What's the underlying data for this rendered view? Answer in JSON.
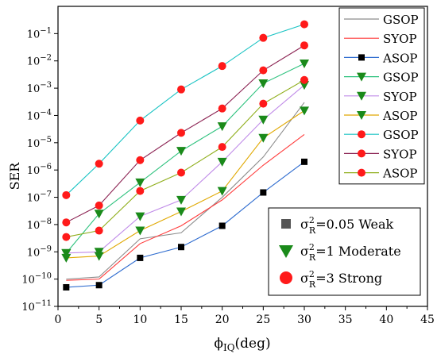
{
  "chart_data": {
    "type": "line",
    "title": "",
    "xlabel": "ϕ",
    "xlabel_sub": "IQ",
    "xlabel_unit": "(deg)",
    "ylabel": "SER",
    "xlim": [
      0,
      45
    ],
    "x_ticks": [
      0,
      5,
      10,
      15,
      20,
      25,
      30,
      35,
      40,
      45
    ],
    "yscale": "log",
    "ylim_exponent": [
      -11,
      0
    ],
    "y_tick_exponents": [
      -11,
      -10,
      -9,
      -8,
      -7,
      -6,
      -5,
      -4,
      -3,
      -2,
      -1
    ],
    "x": [
      1,
      5,
      10,
      15,
      20,
      25,
      30
    ],
    "legend_placement": "top-right",
    "series": [
      {
        "name": "GSOP",
        "group": "σ²=0.05 Weak",
        "color": "#8c8c8c",
        "marker": "none",
        "values": [
          1e-10,
          1.2e-10,
          3e-09,
          5e-09,
          1e-07,
          3e-06,
          0.0003
        ]
      },
      {
        "name": "SYOP",
        "group": "σ²=0.05 Weak",
        "color": "#ff3b3b",
        "marker": "none",
        "values": [
          9e-11,
          1e-10,
          2e-09,
          9e-09,
          8e-08,
          1.5e-06,
          2e-05
        ]
      },
      {
        "name": "ASOP",
        "group": "σ²=0.05 Weak",
        "color": "#2d6bcf",
        "marker": "square",
        "values": [
          5e-11,
          6e-11,
          6e-10,
          1.5e-09,
          9e-09,
          1.5e-07,
          2e-06
        ]
      },
      {
        "name": "GSOP",
        "group": "σ²=1 Moderate",
        "color": "#2ec27e",
        "marker": "triangle-down",
        "values": [
          9e-10,
          2.5e-08,
          3.5e-07,
          5e-06,
          4e-05,
          0.0015,
          0.008
        ]
      },
      {
        "name": "SYOP",
        "group": "σ²=1 Moderate",
        "color": "#c08be8",
        "marker": "triangle-down",
        "values": [
          9e-10,
          1e-09,
          2e-08,
          8e-08,
          2e-06,
          7e-05,
          0.0013
        ]
      },
      {
        "name": "ASOP",
        "group": "σ²=1 Moderate",
        "color": "#e0a800",
        "marker": "triangle-down",
        "values": [
          6e-10,
          7e-10,
          6e-09,
          3e-08,
          1.7e-07,
          1.5e-05,
          0.00015
        ]
      },
      {
        "name": "GSOP",
        "group": "σ²=3 Strong",
        "color": "#19c3c3",
        "marker": "circle",
        "values": [
          1.2e-07,
          1.7e-06,
          6.5e-05,
          0.0009,
          0.0065,
          0.07,
          0.22
        ]
      },
      {
        "name": "SYOP",
        "group": "σ²=3 Strong",
        "color": "#8b2252",
        "marker": "circle",
        "values": [
          1.2e-08,
          5e-08,
          2.3e-06,
          2.3e-05,
          0.00018,
          0.0045,
          0.037
        ]
      },
      {
        "name": "ASOP",
        "group": "σ²=3 Strong",
        "color": "#8fae1b",
        "marker": "circle",
        "values": [
          3.5e-09,
          6e-09,
          1.7e-07,
          8e-07,
          7e-06,
          0.00027,
          0.002
        ]
      }
    ],
    "group_legend": [
      {
        "marker": "square",
        "color": "#555555",
        "sigma": "σ",
        "sub": "R",
        "sup": "2",
        "text": "=0.05 Weak"
      },
      {
        "marker": "triangle-down",
        "color": "#1a8a1a",
        "sigma": "σ",
        "sub": "R",
        "sup": "2",
        "text": "=1 Moderate"
      },
      {
        "marker": "circle",
        "color": "#ff1a1a",
        "sigma": "σ",
        "sub": "R",
        "sup": "2",
        "text": "=3 Strong"
      }
    ],
    "marker_fill": {
      "square": "#000000",
      "triangle-down": "#1a8a1a",
      "circle": "#ff1a1a"
    }
  }
}
